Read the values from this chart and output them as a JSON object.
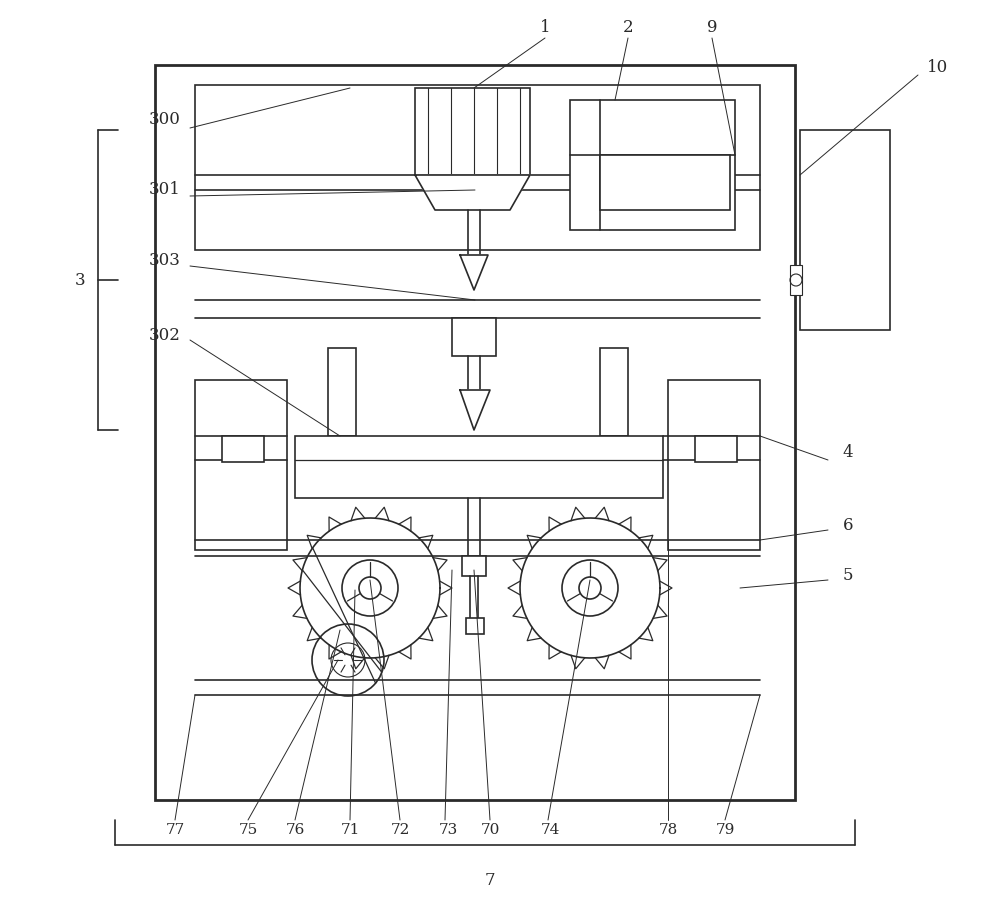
{
  "bg": "#ffffff",
  "lc": "#2a2a2a",
  "lw": 1.2,
  "lw2": 2.0,
  "lw3": 0.7,
  "fw": 10.0,
  "fh": 9.05,
  "dpi": 100
}
